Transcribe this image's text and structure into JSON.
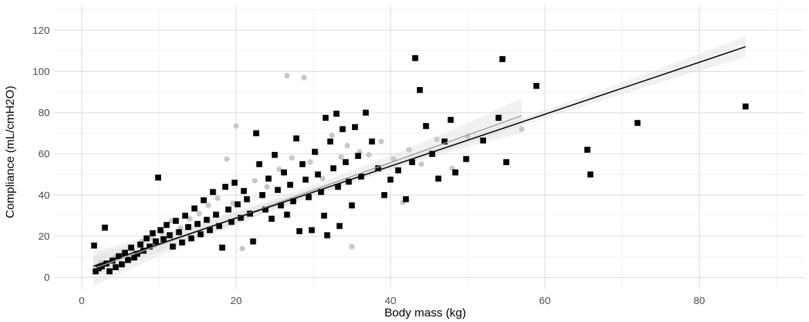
{
  "chart_data": {
    "type": "scatter",
    "title": "",
    "xlabel": "Body mass (kg)",
    "ylabel": "Compliance (mL/cmH2O)",
    "xlim": [
      -3.6,
      93.5
    ],
    "ylim": [
      -5.5,
      132
    ],
    "x_ticks": [
      0,
      20,
      40,
      60,
      80
    ],
    "y_ticks": [
      0,
      20,
      40,
      60,
      80,
      100,
      120
    ],
    "grid": true,
    "legend": "none",
    "series": [
      {
        "marker": "square",
        "color": "#000000",
        "points": [
          [
            1.6,
            15.5
          ],
          [
            3.0,
            24.2
          ],
          [
            1.8,
            3.0
          ],
          [
            2.2,
            4.5
          ],
          [
            2.6,
            5.4
          ],
          [
            3.2,
            6.8
          ],
          [
            3.6,
            3.0
          ],
          [
            4.0,
            8.2
          ],
          [
            4.4,
            5.0
          ],
          [
            4.8,
            10.3
          ],
          [
            5.2,
            6.4
          ],
          [
            5.6,
            12.0
          ],
          [
            6.0,
            8.5
          ],
          [
            6.4,
            14.5
          ],
          [
            6.8,
            9.7
          ],
          [
            7.2,
            11.5
          ],
          [
            7.6,
            16.0
          ],
          [
            8.0,
            13.0
          ],
          [
            8.4,
            19.0
          ],
          [
            8.8,
            15.0
          ],
          [
            9.2,
            21.5
          ],
          [
            9.6,
            17.5
          ],
          [
            9.9,
            48.5
          ],
          [
            10.2,
            23.0
          ],
          [
            10.6,
            18.6
          ],
          [
            11.0,
            25.5
          ],
          [
            11.4,
            20.5
          ],
          [
            11.8,
            15.0
          ],
          [
            12.2,
            27.5
          ],
          [
            12.6,
            22.0
          ],
          [
            13.0,
            17.0
          ],
          [
            13.4,
            30.0
          ],
          [
            13.8,
            24.5
          ],
          [
            14.2,
            19.0
          ],
          [
            14.6,
            33.5
          ],
          [
            15.0,
            26.0
          ],
          [
            15.4,
            21.0
          ],
          [
            15.8,
            37.5
          ],
          [
            16.2,
            28.0
          ],
          [
            16.6,
            23.0
          ],
          [
            17.0,
            41.5
          ],
          [
            17.4,
            30.5
          ],
          [
            17.8,
            25.0
          ],
          [
            18.2,
            14.5
          ],
          [
            18.6,
            44.0
          ],
          [
            19.0,
            33.0
          ],
          [
            19.4,
            27.0
          ],
          [
            19.8,
            46.0
          ],
          [
            20.2,
            35.5
          ],
          [
            20.6,
            29.0
          ],
          [
            21.0,
            42.0
          ],
          [
            21.4,
            38.0
          ],
          [
            21.8,
            31.0
          ],
          [
            22.2,
            17.5
          ],
          [
            22.6,
            70.0
          ],
          [
            23.0,
            55.0
          ],
          [
            23.4,
            40.0
          ],
          [
            23.8,
            33.0
          ],
          [
            24.2,
            48.0
          ],
          [
            24.6,
            28.5
          ],
          [
            25.0,
            59.5
          ],
          [
            25.4,
            42.5
          ],
          [
            25.8,
            35.0
          ],
          [
            26.2,
            51.0
          ],
          [
            26.6,
            30.5
          ],
          [
            27.0,
            45.0
          ],
          [
            27.4,
            37.0
          ],
          [
            27.8,
            67.5
          ],
          [
            28.2,
            22.5
          ],
          [
            28.6,
            55.0
          ],
          [
            29.0,
            47.5
          ],
          [
            29.4,
            39.0
          ],
          [
            29.8,
            23.0
          ],
          [
            30.2,
            61.0
          ],
          [
            30.6,
            50.0
          ],
          [
            31.0,
            41.5
          ],
          [
            31.4,
            30.0
          ],
          [
            31.6,
            77.5
          ],
          [
            31.8,
            20.5
          ],
          [
            32.2,
            66.0
          ],
          [
            32.6,
            53.0
          ],
          [
            33.0,
            79.5
          ],
          [
            33.2,
            44.0
          ],
          [
            33.4,
            25.0
          ],
          [
            33.8,
            72.0
          ],
          [
            34.2,
            56.0
          ],
          [
            34.6,
            46.5
          ],
          [
            35.0,
            35.0
          ],
          [
            35.4,
            73.0
          ],
          [
            35.8,
            59.0
          ],
          [
            36.2,
            49.0
          ],
          [
            36.8,
            80.0
          ],
          [
            37.6,
            66.0
          ],
          [
            38.4,
            53.0
          ],
          [
            39.2,
            40.0
          ],
          [
            40.0,
            47.5
          ],
          [
            41.0,
            52.0
          ],
          [
            42.0,
            38.0
          ],
          [
            42.8,
            56.0
          ],
          [
            43.2,
            106.5
          ],
          [
            43.8,
            91.0
          ],
          [
            44.6,
            73.5
          ],
          [
            45.4,
            60.0
          ],
          [
            46.2,
            48.0
          ],
          [
            47.0,
            66.0
          ],
          [
            47.8,
            76.5
          ],
          [
            48.4,
            51.0
          ],
          [
            49.8,
            57.5
          ],
          [
            52.0,
            66.5
          ],
          [
            54.0,
            77.5
          ],
          [
            54.5,
            106.0
          ],
          [
            55.0,
            56.0
          ],
          [
            58.9,
            93.0
          ],
          [
            65.5,
            62.0
          ],
          [
            65.9,
            50.0
          ],
          [
            72.0,
            75.0
          ],
          [
            86.0,
            83.0
          ]
        ]
      },
      {
        "marker": "circle",
        "color": "#c8c8c8",
        "points": [
          [
            2.4,
            7.0
          ],
          [
            4.2,
            9.5
          ],
          [
            5.4,
            11.0
          ],
          [
            6.6,
            13.5
          ],
          [
            7.8,
            17.5
          ],
          [
            9.0,
            19.5
          ],
          [
            10.4,
            22.0
          ],
          [
            11.6,
            27.5
          ],
          [
            12.8,
            24.0
          ],
          [
            14.0,
            28.5
          ],
          [
            15.2,
            31.0
          ],
          [
            16.4,
            35.0
          ],
          [
            17.6,
            38.5
          ],
          [
            18.8,
            57.5
          ],
          [
            19.6,
            36.0
          ],
          [
            20.0,
            73.5
          ],
          [
            20.8,
            14.0
          ],
          [
            22.4,
            47.0
          ],
          [
            24.0,
            44.0
          ],
          [
            25.6,
            52.5
          ],
          [
            26.6,
            98.0
          ],
          [
            27.2,
            58.0
          ],
          [
            28.8,
            97.0
          ],
          [
            29.6,
            56.0
          ],
          [
            30.4,
            60.5
          ],
          [
            31.2,
            48.0
          ],
          [
            32.4,
            69.0
          ],
          [
            33.6,
            58.5
          ],
          [
            34.4,
            64.0
          ],
          [
            35.0,
            15.0
          ],
          [
            36.0,
            61.0
          ],
          [
            37.2,
            59.5
          ],
          [
            38.8,
            66.0
          ],
          [
            40.4,
            57.5
          ],
          [
            41.6,
            36.5
          ],
          [
            42.4,
            62.0
          ],
          [
            44.0,
            55.0
          ],
          [
            46.0,
            67.0
          ],
          [
            48.0,
            53.0
          ],
          [
            50.0,
            68.5
          ],
          [
            57.0,
            72.0
          ]
        ]
      }
    ],
    "fits": [
      {
        "name": "black-fit",
        "color": "#000000",
        "x": [
          1.5,
          86
        ],
        "y": [
          5.5,
          112.0
        ],
        "ci_start": 1.5,
        "ci_end": 5.0
      },
      {
        "name": "gray-fit",
        "color": "#a0a0a0",
        "x": [
          1.5,
          57
        ],
        "y": [
          4.3,
          78.5
        ],
        "ci_start": 2.5,
        "ci_end": 8.5
      }
    ]
  }
}
